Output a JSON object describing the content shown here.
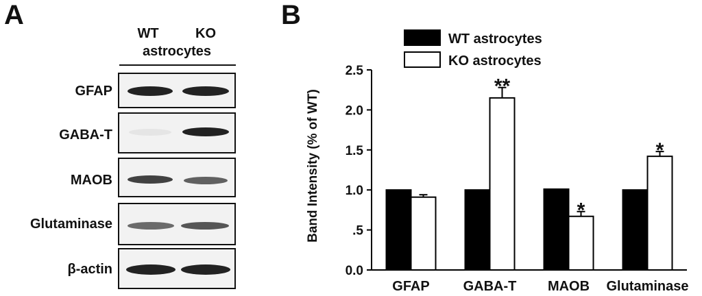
{
  "panels": {
    "a": "A",
    "b": "B"
  },
  "western_blot": {
    "lanes": [
      "WT",
      "KO"
    ],
    "group_label": "astrocytes",
    "rows": [
      {
        "label": "GFAP",
        "wt": 0.9,
        "ko": 0.92
      },
      {
        "label": "GABA-T",
        "wt": 0.05,
        "ko": 0.8
      },
      {
        "label": "MAOB",
        "wt": 0.7,
        "ko": 0.55
      },
      {
        "label": "Glutaminase",
        "wt": 0.55,
        "ko": 0.65
      },
      {
        "label": "β-actin",
        "wt": 0.95,
        "ko": 0.95
      }
    ]
  },
  "chart_data": {
    "type": "bar",
    "categories": [
      "GFAP",
      "GABA-T",
      "MAOB",
      "Glutaminase"
    ],
    "series": [
      {
        "name": "WT astrocytes",
        "values": [
          1.0,
          1.0,
          1.01,
          1.0
        ],
        "errors": [
          0,
          0,
          0,
          0
        ],
        "color": "#000000"
      },
      {
        "name": "KO astrocytes",
        "values": [
          0.91,
          2.15,
          0.67,
          1.42
        ],
        "errors": [
          0.03,
          0.13,
          0.06,
          0.06
        ],
        "color": "#ffffff"
      }
    ],
    "significance": [
      "",
      "**",
      "*",
      "*"
    ],
    "ylabel": "Band Intensity (% of WT)",
    "xlabel": "",
    "ylim": [
      0,
      2.5
    ],
    "yticks": [
      0,
      0.5,
      1.0,
      1.5,
      2.0,
      2.5
    ],
    "ytick_labels": [
      "0.0",
      ".5",
      "1.0",
      "1.5",
      "2.0",
      "2.5"
    ],
    "legend_position": "top-left"
  }
}
